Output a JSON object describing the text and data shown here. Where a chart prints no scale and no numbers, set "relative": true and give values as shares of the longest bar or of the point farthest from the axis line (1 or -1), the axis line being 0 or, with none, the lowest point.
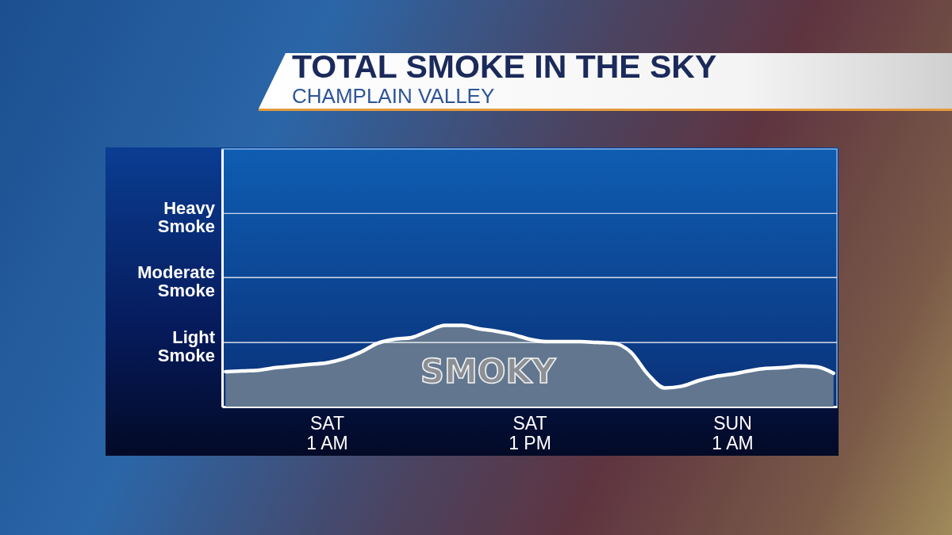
{
  "chart_data": {
    "type": "area",
    "title": "TOTAL SMOKE IN THE SKY",
    "subtitle": "CHAMPLAIN VALLEY",
    "categories": [
      null,
      null,
      null,
      null,
      null,
      null,
      "SAT 1 AM",
      null,
      null,
      null,
      null,
      null,
      null,
      null,
      null,
      null,
      null,
      null,
      "SAT 1 PM",
      null,
      null,
      null,
      null,
      null,
      null,
      null,
      null,
      null,
      null,
      null,
      "SUN 1 AM",
      null,
      null,
      null,
      null,
      null,
      null
    ],
    "series": [
      {
        "color": "#62778f",
        "values": [
          0.43,
          0.44,
          0.45,
          0.48,
          0.5,
          0.52,
          0.54,
          0.59,
          0.67,
          0.78,
          0.83,
          0.85,
          0.93,
          1.0,
          1.0,
          0.96,
          0.93,
          0.89,
          0.83,
          0.8,
          0.8,
          0.8,
          0.79,
          0.78,
          0.67,
          0.4,
          0.23,
          0.25,
          0.32,
          0.37,
          0.4,
          0.44,
          0.47,
          0.48,
          0.5,
          0.49,
          0.41
        ]
      }
    ],
    "relative": true,
    "ref_lines": [
      {
        "axis": "y",
        "value": 0.79,
        "label": "Light Smoke",
        "color": "#ffffff"
      },
      {
        "axis": "y",
        "value": 1.59,
        "label": "Moderate Smoke",
        "color": "#ffffff"
      },
      {
        "axis": "y",
        "value": 2.38,
        "label": "Heavy Smoke",
        "color": "#ffffff"
      }
    ],
    "annotations": [
      "SMOKY"
    ]
  }
}
